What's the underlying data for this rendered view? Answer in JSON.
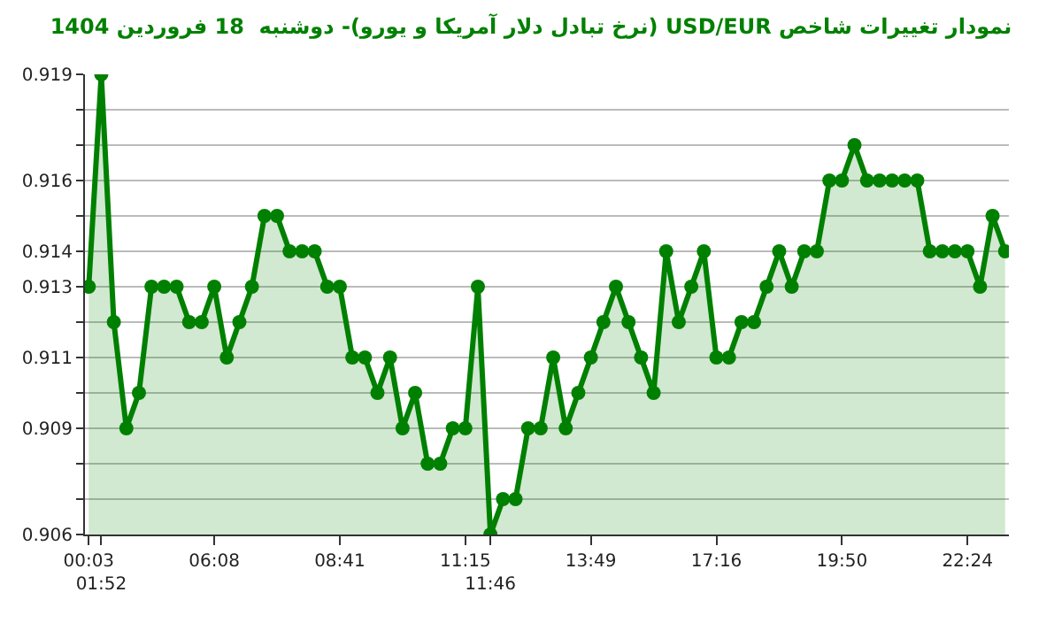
{
  "chart_data": {
    "type": "area",
    "title": "نمودار تغییرات شاخص USD/EUR (نرخ تبادل دلار آمریکا و یورو)- دوشنبه  18 فروردین 1404",
    "categories": [
      "00:03",
      "01:52",
      null,
      null,
      null,
      null,
      null,
      null,
      null,
      null,
      "06:08",
      null,
      null,
      null,
      null,
      null,
      null,
      null,
      null,
      null,
      "08:41",
      null,
      null,
      null,
      null,
      null,
      null,
      null,
      null,
      null,
      "11:15",
      null,
      "11:46",
      null,
      null,
      null,
      null,
      null,
      null,
      null,
      "13:49",
      null,
      null,
      null,
      null,
      null,
      null,
      null,
      null,
      null,
      "17:16",
      null,
      null,
      null,
      null,
      null,
      null,
      null,
      null,
      null,
      "19:50",
      null,
      null,
      null,
      null,
      null,
      null,
      null,
      null,
      null,
      "22:24",
      null,
      null,
      null
    ],
    "series": [
      {
        "color": "#008000",
        "values": [
          0.913,
          0.919,
          0.912,
          0.909,
          0.91,
          0.913,
          0.913,
          0.913,
          0.912,
          0.912,
          0.913,
          0.911,
          0.912,
          0.913,
          0.915,
          0.915,
          0.914,
          0.914,
          0.914,
          0.913,
          0.913,
          0.911,
          0.911,
          0.91,
          0.911,
          0.909,
          0.91,
          0.908,
          0.908,
          0.909,
          0.909,
          0.913,
          0.906,
          0.907,
          0.907,
          0.909,
          0.909,
          0.911,
          0.909,
          0.91,
          0.911,
          0.912,
          0.913,
          0.912,
          0.911,
          0.91,
          0.914,
          0.912,
          0.913,
          0.914,
          0.911,
          0.911,
          0.912,
          0.912,
          0.913,
          0.914,
          0.913,
          0.914,
          0.914,
          0.916,
          0.916,
          0.917,
          0.916,
          0.916,
          0.916,
          0.916,
          0.916,
          0.914,
          0.914,
          0.914,
          0.914,
          0.913,
          0.915,
          0.914
        ]
      }
    ],
    "ylim": [
      0.906,
      0.919
    ],
    "yticks": [
      0.906,
      {
        "value": 0.907,
        "label": null
      },
      {
        "value": 0.908,
        "label": null
      },
      0.909,
      {
        "value": 0.91,
        "label": null
      },
      0.911,
      {
        "value": 0.912,
        "label": null
      },
      0.913,
      0.914,
      {
        "value": 0.915,
        "label": null
      },
      0.916,
      {
        "value": 0.917,
        "label": null
      },
      {
        "value": 0.918,
        "label": null
      },
      0.919
    ],
    "grid": "y",
    "marker": "circle",
    "line_style": "solid"
  }
}
